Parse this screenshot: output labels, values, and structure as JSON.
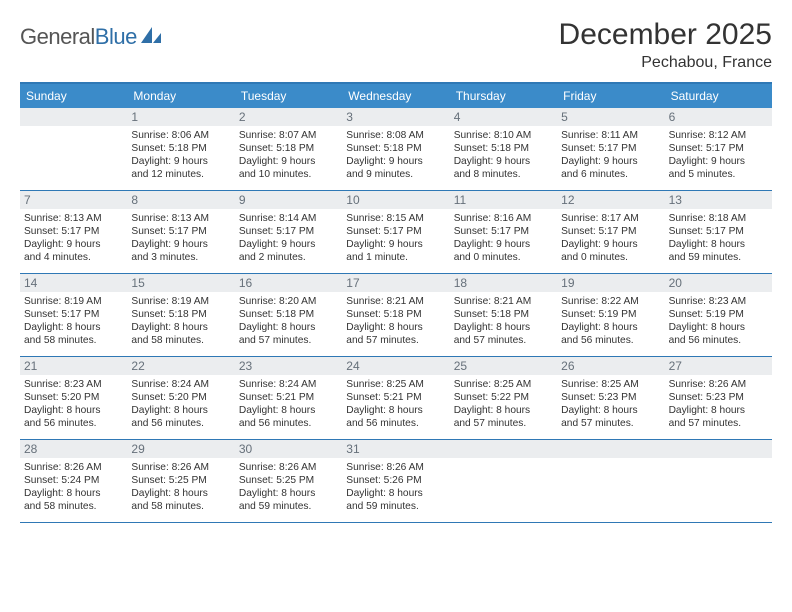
{
  "logo": {
    "word1": "General",
    "word2": "Blue"
  },
  "title": "December 2025",
  "location": "Pechabou, France",
  "colors": {
    "header_bg": "#3b8bc9",
    "header_border": "#2f78b5",
    "daynum_bg": "#ebedef",
    "daynum_fg": "#66707a",
    "text": "#333333",
    "logo_gray": "#555555",
    "logo_blue": "#2f6fa7"
  },
  "weekdays": [
    "Sunday",
    "Monday",
    "Tuesday",
    "Wednesday",
    "Thursday",
    "Friday",
    "Saturday"
  ],
  "weeks": [
    [
      null,
      {
        "n": "1",
        "sunrise": "Sunrise: 8:06 AM",
        "sunset": "Sunset: 5:18 PM",
        "day1": "Daylight: 9 hours",
        "day2": "and 12 minutes."
      },
      {
        "n": "2",
        "sunrise": "Sunrise: 8:07 AM",
        "sunset": "Sunset: 5:18 PM",
        "day1": "Daylight: 9 hours",
        "day2": "and 10 minutes."
      },
      {
        "n": "3",
        "sunrise": "Sunrise: 8:08 AM",
        "sunset": "Sunset: 5:18 PM",
        "day1": "Daylight: 9 hours",
        "day2": "and 9 minutes."
      },
      {
        "n": "4",
        "sunrise": "Sunrise: 8:10 AM",
        "sunset": "Sunset: 5:18 PM",
        "day1": "Daylight: 9 hours",
        "day2": "and 8 minutes."
      },
      {
        "n": "5",
        "sunrise": "Sunrise: 8:11 AM",
        "sunset": "Sunset: 5:17 PM",
        "day1": "Daylight: 9 hours",
        "day2": "and 6 minutes."
      },
      {
        "n": "6",
        "sunrise": "Sunrise: 8:12 AM",
        "sunset": "Sunset: 5:17 PM",
        "day1": "Daylight: 9 hours",
        "day2": "and 5 minutes."
      }
    ],
    [
      {
        "n": "7",
        "sunrise": "Sunrise: 8:13 AM",
        "sunset": "Sunset: 5:17 PM",
        "day1": "Daylight: 9 hours",
        "day2": "and 4 minutes."
      },
      {
        "n": "8",
        "sunrise": "Sunrise: 8:13 AM",
        "sunset": "Sunset: 5:17 PM",
        "day1": "Daylight: 9 hours",
        "day2": "and 3 minutes."
      },
      {
        "n": "9",
        "sunrise": "Sunrise: 8:14 AM",
        "sunset": "Sunset: 5:17 PM",
        "day1": "Daylight: 9 hours",
        "day2": "and 2 minutes."
      },
      {
        "n": "10",
        "sunrise": "Sunrise: 8:15 AM",
        "sunset": "Sunset: 5:17 PM",
        "day1": "Daylight: 9 hours",
        "day2": "and 1 minute."
      },
      {
        "n": "11",
        "sunrise": "Sunrise: 8:16 AM",
        "sunset": "Sunset: 5:17 PM",
        "day1": "Daylight: 9 hours",
        "day2": "and 0 minutes."
      },
      {
        "n": "12",
        "sunrise": "Sunrise: 8:17 AM",
        "sunset": "Sunset: 5:17 PM",
        "day1": "Daylight: 9 hours",
        "day2": "and 0 minutes."
      },
      {
        "n": "13",
        "sunrise": "Sunrise: 8:18 AM",
        "sunset": "Sunset: 5:17 PM",
        "day1": "Daylight: 8 hours",
        "day2": "and 59 minutes."
      }
    ],
    [
      {
        "n": "14",
        "sunrise": "Sunrise: 8:19 AM",
        "sunset": "Sunset: 5:17 PM",
        "day1": "Daylight: 8 hours",
        "day2": "and 58 minutes."
      },
      {
        "n": "15",
        "sunrise": "Sunrise: 8:19 AM",
        "sunset": "Sunset: 5:18 PM",
        "day1": "Daylight: 8 hours",
        "day2": "and 58 minutes."
      },
      {
        "n": "16",
        "sunrise": "Sunrise: 8:20 AM",
        "sunset": "Sunset: 5:18 PM",
        "day1": "Daylight: 8 hours",
        "day2": "and 57 minutes."
      },
      {
        "n": "17",
        "sunrise": "Sunrise: 8:21 AM",
        "sunset": "Sunset: 5:18 PM",
        "day1": "Daylight: 8 hours",
        "day2": "and 57 minutes."
      },
      {
        "n": "18",
        "sunrise": "Sunrise: 8:21 AM",
        "sunset": "Sunset: 5:18 PM",
        "day1": "Daylight: 8 hours",
        "day2": "and 57 minutes."
      },
      {
        "n": "19",
        "sunrise": "Sunrise: 8:22 AM",
        "sunset": "Sunset: 5:19 PM",
        "day1": "Daylight: 8 hours",
        "day2": "and 56 minutes."
      },
      {
        "n": "20",
        "sunrise": "Sunrise: 8:23 AM",
        "sunset": "Sunset: 5:19 PM",
        "day1": "Daylight: 8 hours",
        "day2": "and 56 minutes."
      }
    ],
    [
      {
        "n": "21",
        "sunrise": "Sunrise: 8:23 AM",
        "sunset": "Sunset: 5:20 PM",
        "day1": "Daylight: 8 hours",
        "day2": "and 56 minutes."
      },
      {
        "n": "22",
        "sunrise": "Sunrise: 8:24 AM",
        "sunset": "Sunset: 5:20 PM",
        "day1": "Daylight: 8 hours",
        "day2": "and 56 minutes."
      },
      {
        "n": "23",
        "sunrise": "Sunrise: 8:24 AM",
        "sunset": "Sunset: 5:21 PM",
        "day1": "Daylight: 8 hours",
        "day2": "and 56 minutes."
      },
      {
        "n": "24",
        "sunrise": "Sunrise: 8:25 AM",
        "sunset": "Sunset: 5:21 PM",
        "day1": "Daylight: 8 hours",
        "day2": "and 56 minutes."
      },
      {
        "n": "25",
        "sunrise": "Sunrise: 8:25 AM",
        "sunset": "Sunset: 5:22 PM",
        "day1": "Daylight: 8 hours",
        "day2": "and 57 minutes."
      },
      {
        "n": "26",
        "sunrise": "Sunrise: 8:25 AM",
        "sunset": "Sunset: 5:23 PM",
        "day1": "Daylight: 8 hours",
        "day2": "and 57 minutes."
      },
      {
        "n": "27",
        "sunrise": "Sunrise: 8:26 AM",
        "sunset": "Sunset: 5:23 PM",
        "day1": "Daylight: 8 hours",
        "day2": "and 57 minutes."
      }
    ],
    [
      {
        "n": "28",
        "sunrise": "Sunrise: 8:26 AM",
        "sunset": "Sunset: 5:24 PM",
        "day1": "Daylight: 8 hours",
        "day2": "and 58 minutes."
      },
      {
        "n": "29",
        "sunrise": "Sunrise: 8:26 AM",
        "sunset": "Sunset: 5:25 PM",
        "day1": "Daylight: 8 hours",
        "day2": "and 58 minutes."
      },
      {
        "n": "30",
        "sunrise": "Sunrise: 8:26 AM",
        "sunset": "Sunset: 5:25 PM",
        "day1": "Daylight: 8 hours",
        "day2": "and 59 minutes."
      },
      {
        "n": "31",
        "sunrise": "Sunrise: 8:26 AM",
        "sunset": "Sunset: 5:26 PM",
        "day1": "Daylight: 8 hours",
        "day2": "and 59 minutes."
      },
      null,
      null,
      null
    ]
  ]
}
